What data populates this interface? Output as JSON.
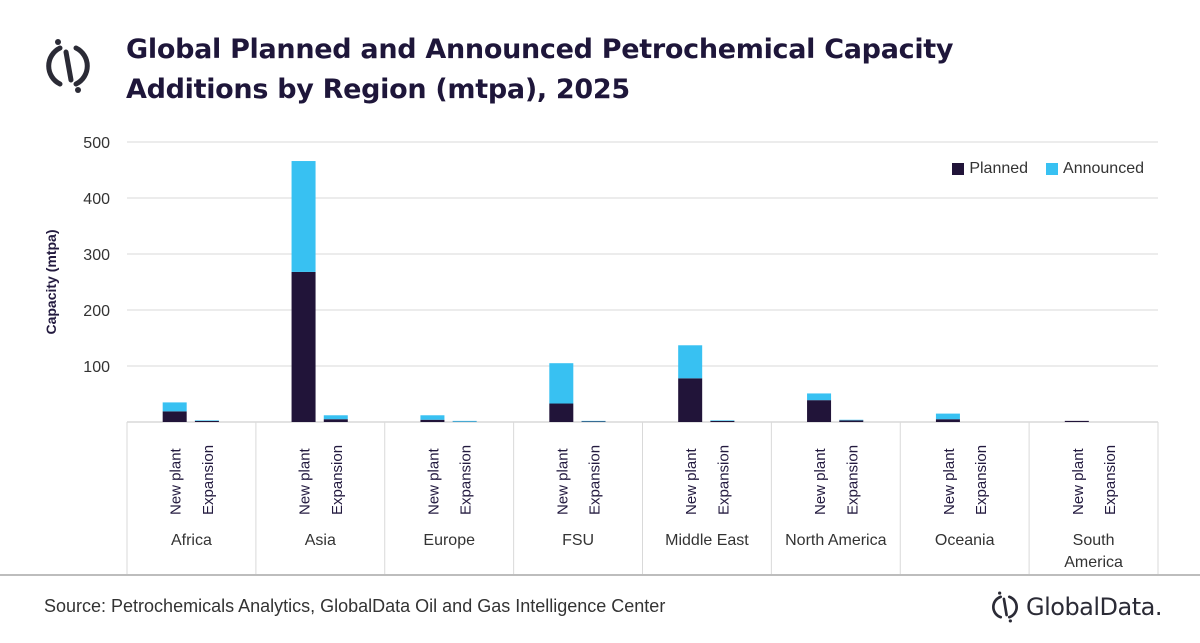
{
  "header": {
    "title_line1": "Global Planned and Announced Petrochemical Capacity",
    "title_line2": "Additions by Region (mtpa), 2025",
    "logo_icon": "globaldata-logo-icon"
  },
  "footer": {
    "source": "Source: Petrochemicals Analytics, GlobalData Oil and Gas Intelligence Center",
    "brand": "GlobalData."
  },
  "colors": {
    "planned": "#211439",
    "announced": "#38c1f2",
    "grid": "#d9d9d9",
    "text": "#333333"
  },
  "chart_data": {
    "type": "bar",
    "stacked": true,
    "title": "Global Planned and Announced Petrochemical Capacity Additions by Region (mtpa), 2025",
    "xlabel": "",
    "ylabel": "Capacity (mtpa)",
    "ylim": [
      0,
      500
    ],
    "yticks": [
      100,
      200,
      300,
      400,
      500
    ],
    "grid": true,
    "legend_position": "top-right",
    "groups": [
      "Africa",
      "Asia",
      "Europe",
      "FSU",
      "Middle East",
      "North America",
      "Oceania",
      "South America"
    ],
    "subcategories": [
      "New plant",
      "Expansion"
    ],
    "series": [
      {
        "name": "Planned",
        "values": [
          [
            19,
            2
          ],
          [
            268,
            5
          ],
          [
            4,
            0.5
          ],
          [
            33,
            1
          ],
          [
            78,
            2
          ],
          [
            39,
            3
          ],
          [
            5,
            0
          ],
          [
            2,
            0
          ]
        ]
      },
      {
        "name": "Announced",
        "values": [
          [
            16,
            1
          ],
          [
            198,
            7
          ],
          [
            8,
            1.5
          ],
          [
            72,
            1
          ],
          [
            59,
            1
          ],
          [
            12,
            1
          ],
          [
            10,
            0
          ],
          [
            0,
            0
          ]
        ]
      }
    ]
  }
}
